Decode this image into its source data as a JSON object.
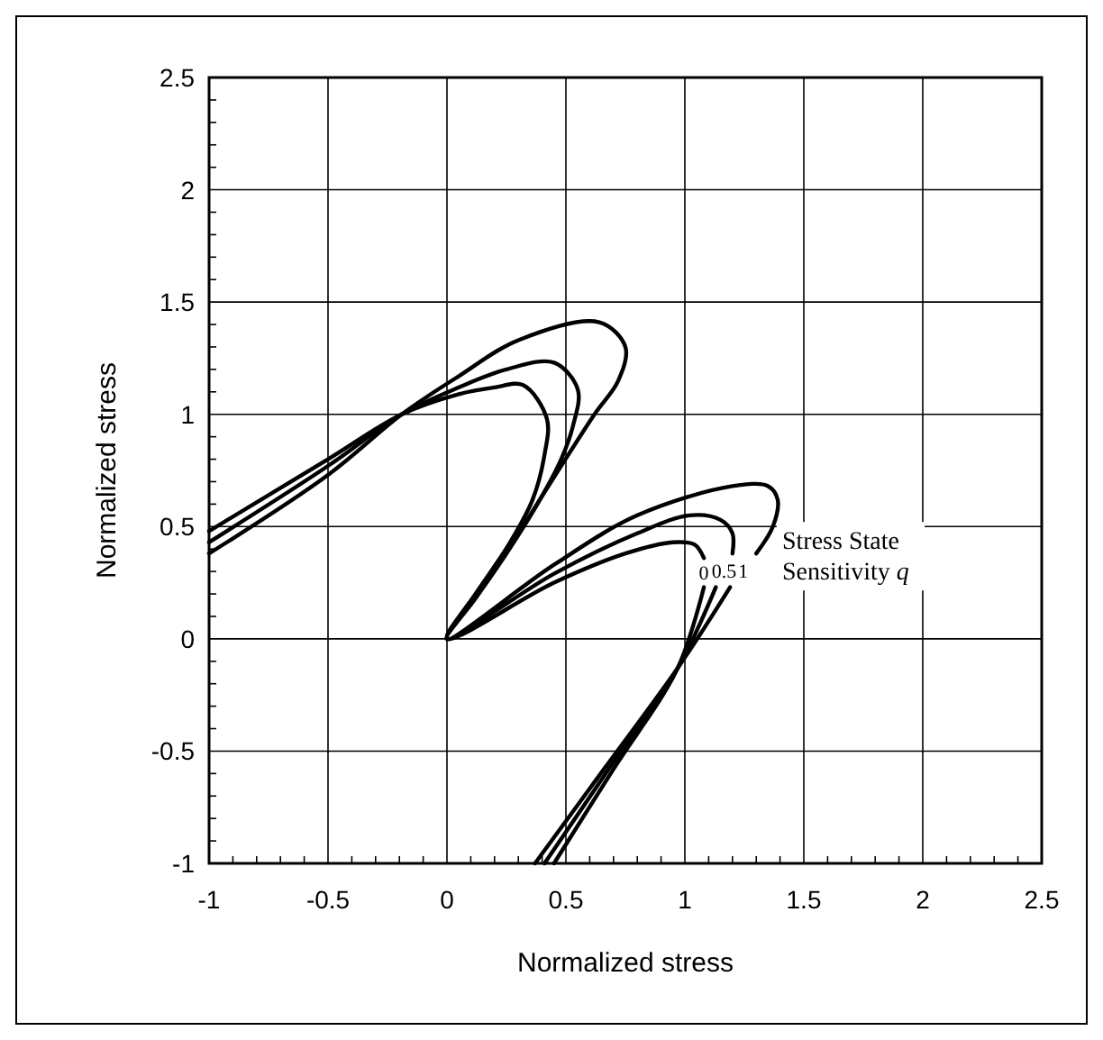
{
  "chart_data": {
    "type": "line",
    "xlabel": "Normalized stress",
    "ylabel": "Normalized stress",
    "xlim": [
      -1,
      2.5
    ],
    "ylim": [
      -1,
      2.5
    ],
    "xticks": [
      -1,
      -0.5,
      0,
      0.5,
      1,
      1.5,
      2,
      2.5
    ],
    "yticks": [
      -1,
      -0.5,
      0,
      0.5,
      1,
      1.5,
      2,
      2.5
    ],
    "grid": true,
    "marker": "none",
    "line_style": "solid",
    "annotations": [
      "Stress State Sensitivity q"
    ],
    "series": [
      {
        "name": "0",
        "color": "#000000",
        "x": [
          -1,
          -0.5,
          -0.19,
          0.05,
          0.2,
          0.32,
          0.42,
          0.41,
          0.36,
          0.26,
          0.12,
          0,
          0.45,
          0.75,
          0.95,
          1.04,
          1.08,
          null,
          1.08,
          0.97,
          0.7,
          0.45
        ],
        "values": [
          0.48,
          0.8,
          1.0,
          1.09,
          1.12,
          1.13,
          0.98,
          0.82,
          0.62,
          0.42,
          0.2,
          0,
          0.25,
          0.38,
          0.43,
          0.42,
          0.36,
          null,
          0.23,
          -0.13,
          -0.58,
          -1.0
        ]
      },
      {
        "name": "0.5",
        "color": "#000000",
        "x": [
          -1,
          -0.5,
          -0.19,
          0.05,
          0.25,
          0.45,
          0.55,
          0.53,
          0.48,
          0.38,
          0.25,
          0.12,
          0,
          0.45,
          0.8,
          1.02,
          1.15,
          1.2,
          1.2,
          null,
          1.13,
          0.97,
          0.68,
          0.41
        ],
        "values": [
          0.43,
          0.77,
          1.0,
          1.12,
          1.2,
          1.23,
          1.11,
          0.95,
          0.8,
          0.6,
          0.38,
          0.18,
          0,
          0.29,
          0.47,
          0.55,
          0.53,
          0.47,
          0.38,
          null,
          0.23,
          -0.13,
          -0.58,
          -1.0
        ]
      },
      {
        "name": "1",
        "color": "#000000",
        "x": [
          -1,
          -0.5,
          -0.19,
          0.05,
          0.3,
          0.64,
          0.75,
          0.72,
          0.62,
          0.45,
          0.3,
          0.15,
          0,
          0.45,
          0.8,
          1.2,
          1.35,
          1.39,
          1.37,
          1.3,
          null,
          1.19,
          0.97,
          0.66,
          0.37
        ],
        "values": [
          0.38,
          0.73,
          1.0,
          1.17,
          1.33,
          1.41,
          1.3,
          1.15,
          1.0,
          0.72,
          0.47,
          0.24,
          0,
          0.33,
          0.55,
          0.68,
          0.68,
          0.62,
          0.5,
          0.38,
          null,
          0.23,
          -0.13,
          -0.58,
          -1.0
        ]
      }
    ]
  }
}
